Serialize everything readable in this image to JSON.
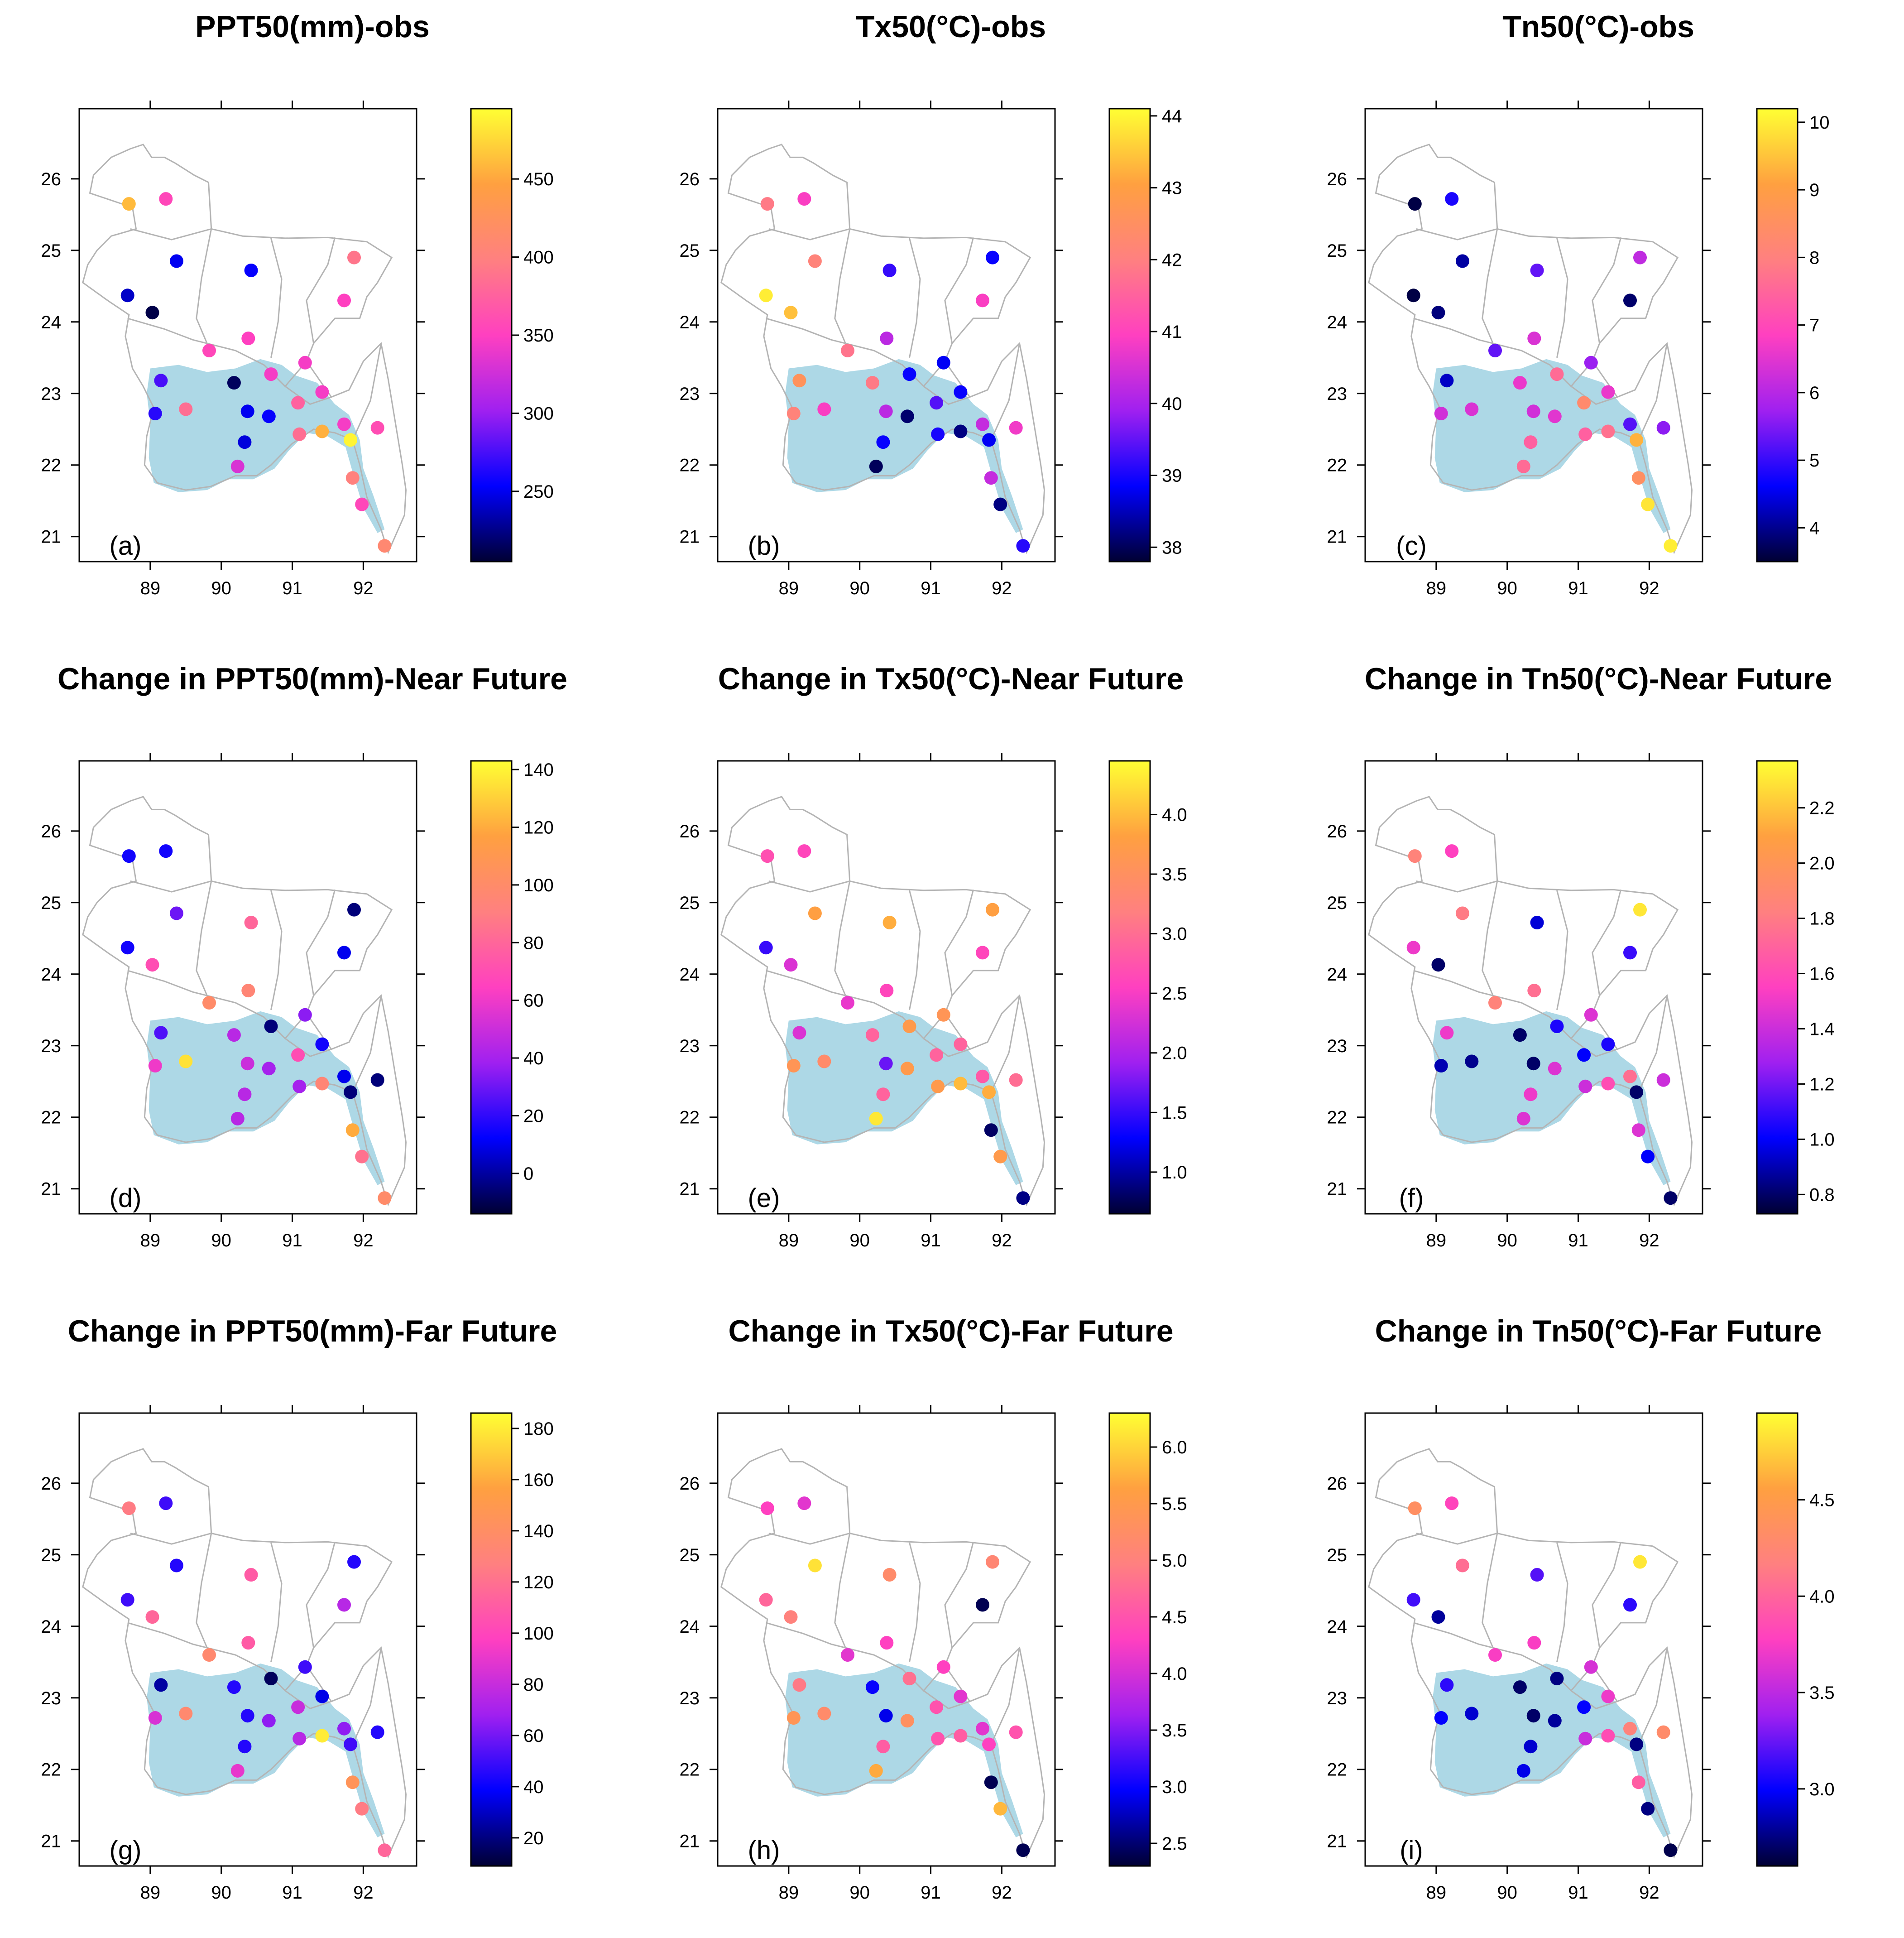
{
  "figure": {
    "panels": [
      {
        "id": "a",
        "letter": "(a)",
        "title": "PPT50(mm)-obs",
        "colorbar": {
          "ticks": [
            "250",
            "300",
            "350",
            "400",
            "450"
          ],
          "tick_values": [
            250,
            300,
            350,
            400,
            450
          ],
          "min": 205,
          "max": 495
        }
      },
      {
        "id": "b",
        "letter": "(b)",
        "title": "Tx50(°C)-obs",
        "colorbar": {
          "ticks": [
            "38",
            "39",
            "40",
            "41",
            "42",
            "43",
            "44"
          ],
          "tick_values": [
            38,
            39,
            40,
            41,
            42,
            43,
            44
          ],
          "min": 37.8,
          "max": 44.1
        }
      },
      {
        "id": "c",
        "letter": "(c)",
        "title": "Tn50(°C)-obs",
        "colorbar": {
          "ticks": [
            "4",
            "5",
            "6",
            "7",
            "8",
            "9",
            "10"
          ],
          "tick_values": [
            4,
            5,
            6,
            7,
            8,
            9,
            10
          ],
          "min": 3.5,
          "max": 10.2
        }
      },
      {
        "id": "d",
        "letter": "(d)",
        "title": "Change in PPT50(mm)-Near Future",
        "colorbar": {
          "ticks": [
            "0",
            "20",
            "40",
            "60",
            "80",
            "100",
            "120",
            "140"
          ],
          "tick_values": [
            0,
            20,
            40,
            60,
            80,
            100,
            120,
            140
          ],
          "min": -14,
          "max": 143
        }
      },
      {
        "id": "e",
        "letter": "(e)",
        "title": "Change in Tx50(°C)-Near Future",
        "colorbar": {
          "ticks": [
            "1.0",
            "1.5",
            "2.0",
            "2.5",
            "3.0",
            "3.5",
            "4.0"
          ],
          "tick_values": [
            1.0,
            1.5,
            2.0,
            2.5,
            3.0,
            3.5,
            4.0
          ],
          "min": 0.65,
          "max": 4.45
        }
      },
      {
        "id": "f",
        "letter": "(f)",
        "title": "Change in Tn50(°C)-Near Future",
        "colorbar": {
          "ticks": [
            "0.8",
            "1.0",
            "1.2",
            "1.4",
            "1.6",
            "1.8",
            "2.0",
            "2.2"
          ],
          "tick_values": [
            0.8,
            1.0,
            1.2,
            1.4,
            1.6,
            1.8,
            2.0,
            2.2
          ],
          "min": 0.73,
          "max": 2.37
        }
      },
      {
        "id": "g",
        "letter": "(g)",
        "title": "Change in PPT50(mm)-Far Future",
        "colorbar": {
          "ticks": [
            "20",
            "40",
            "60",
            "80",
            "100",
            "120",
            "140",
            "160",
            "180"
          ],
          "tick_values": [
            20,
            40,
            60,
            80,
            100,
            120,
            140,
            160,
            180
          ],
          "min": 9,
          "max": 186
        }
      },
      {
        "id": "h",
        "letter": "(h)",
        "title": "Change in Tx50(°C)-Far Future",
        "colorbar": {
          "ticks": [
            "2.5",
            "3.0",
            "3.5",
            "4.0",
            "4.5",
            "5.0",
            "5.5",
            "6.0"
          ],
          "tick_values": [
            2.5,
            3.0,
            3.5,
            4.0,
            4.5,
            5.0,
            5.5,
            6.0
          ],
          "min": 2.3,
          "max": 6.3
        }
      },
      {
        "id": "i",
        "letter": "(i)",
        "title": "Change in Tn50(°C)-Far Future",
        "colorbar": {
          "ticks": [
            "3.0",
            "3.5",
            "4.0",
            "4.5"
          ],
          "tick_values": [
            3.0,
            3.5,
            4.0,
            4.5
          ],
          "min": 2.6,
          "max": 4.95
        }
      }
    ],
    "x_ticks": [
      "89",
      "90",
      "91",
      "92"
    ],
    "x_tick_values": [
      89,
      90,
      91,
      92
    ],
    "y_ticks": [
      "21",
      "22",
      "23",
      "24",
      "25",
      "26"
    ],
    "y_tick_values": [
      21,
      22,
      23,
      24,
      25,
      26
    ],
    "xlim": [
      88.0,
      92.75
    ],
    "ylim": [
      20.65,
      26.98
    ],
    "colors": {
      "coastal_zone": "#add8e6",
      "boundary": "#b4b4b4",
      "axis": "#000000",
      "colormap": [
        "#000033",
        "#0000ff",
        "#a020f0",
        "#ff40c0",
        "#ff8080",
        "#ffa040",
        "#ffff33"
      ]
    }
  },
  "chart_data": {
    "type": "scatter",
    "description": "Station values on map of Bangladesh",
    "stations": [
      {
        "lon": 88.7,
        "lat": 25.65
      },
      {
        "lon": 89.22,
        "lat": 25.72
      },
      {
        "lon": 88.68,
        "lat": 24.37
      },
      {
        "lon": 89.03,
        "lat": 24.13
      },
      {
        "lon": 89.37,
        "lat": 24.85
      },
      {
        "lon": 90.42,
        "lat": 24.72
      },
      {
        "lon": 91.87,
        "lat": 24.9
      },
      {
        "lon": 91.73,
        "lat": 24.3
      },
      {
        "lon": 89.83,
        "lat": 23.6
      },
      {
        "lon": 90.38,
        "lat": 23.77
      },
      {
        "lon": 91.18,
        "lat": 23.43
      },
      {
        "lon": 90.7,
        "lat": 23.27
      },
      {
        "lon": 91.42,
        "lat": 23.02
      },
      {
        "lon": 90.18,
        "lat": 23.15
      },
      {
        "lon": 89.15,
        "lat": 23.18
      },
      {
        "lon": 89.07,
        "lat": 22.72
      },
      {
        "lon": 89.5,
        "lat": 22.78
      },
      {
        "lon": 90.37,
        "lat": 22.75
      },
      {
        "lon": 90.67,
        "lat": 22.68
      },
      {
        "lon": 91.08,
        "lat": 22.87
      },
      {
        "lon": 91.1,
        "lat": 22.43
      },
      {
        "lon": 91.42,
        "lat": 22.47
      },
      {
        "lon": 91.73,
        "lat": 22.57
      },
      {
        "lon": 91.82,
        "lat": 22.35
      },
      {
        "lon": 92.2,
        "lat": 22.52
      },
      {
        "lon": 90.33,
        "lat": 22.32
      },
      {
        "lon": 90.23,
        "lat": 21.98
      },
      {
        "lon": 91.85,
        "lat": 21.82
      },
      {
        "lon": 91.98,
        "lat": 21.45
      },
      {
        "lon": 92.3,
        "lat": 20.87
      }
    ],
    "series": [
      {
        "panel": "a",
        "name": "PPT50(mm)-obs",
        "values": [
          460,
          355,
          240,
          210,
          250,
          255,
          390,
          350,
          355,
          350,
          345,
          345,
          345,
          215,
          275,
          265,
          385,
          250,
          255,
          375,
          385,
          455,
          345,
          490,
          360,
          245,
          330,
          400,
          355,
          410
        ]
      },
      {
        "panel": "b",
        "name": "Tx50(°C)-obs",
        "values": [
          41.9,
          40.9,
          43.9,
          43.4,
          42.1,
          39.2,
          38.9,
          40.9,
          41.8,
          40.2,
          38.8,
          38.9,
          38.9,
          41.9,
          42.6,
          42.1,
          40.9,
          40.2,
          38.1,
          39.4,
          39.0,
          38.2,
          40.3,
          38.8,
          40.8,
          38.9,
          38.0,
          40.3,
          38.2,
          39.1
        ]
      },
      {
        "panel": "c",
        "name": "Tn50(°C)-obs",
        "values": [
          3.6,
          4.8,
          3.6,
          3.9,
          4.1,
          5.3,
          6.1,
          3.8,
          5.3,
          6.4,
          5.7,
          7.6,
          6.6,
          6.6,
          4.3,
          6.3,
          6.4,
          6.3,
          6.5,
          8.3,
          7.4,
          7.7,
          5.2,
          9.3,
          5.6,
          7.4,
          7.6,
          8.5,
          9.9,
          10.0
        ]
      },
      {
        "panel": "d",
        "name": "Change in PPT50(mm)-Near Future",
        "values": [
          15,
          15,
          15,
          70,
          30,
          80,
          -5,
          10,
          100,
          95,
          35,
          -5,
          15,
          45,
          25,
          60,
          135,
          50,
          40,
          70,
          40,
          95,
          10,
          -5,
          -5,
          45,
          45,
          120,
          85,
          100
        ]
      },
      {
        "panel": "e",
        "name": "Change in Tx50(°C)-Near Future",
        "values": [
          2.7,
          2.6,
          1.5,
          2.3,
          3.8,
          3.9,
          3.8,
          2.6,
          2.4,
          2.6,
          3.6,
          3.7,
          2.9,
          2.9,
          2.3,
          3.6,
          3.4,
          1.7,
          3.7,
          2.9,
          3.7,
          4.0,
          2.8,
          3.9,
          3.0,
          2.9,
          4.3,
          0.8,
          3.7,
          0.9
        ]
      },
      {
        "panel": "f",
        "name": "Change in Tn50(°C)-Near Future",
        "values": [
          1.85,
          1.55,
          1.5,
          0.8,
          1.8,
          0.95,
          2.3,
          1.1,
          1.85,
          1.75,
          1.45,
          1.05,
          1.05,
          0.8,
          1.5,
          0.9,
          0.85,
          0.8,
          1.45,
          1.0,
          1.4,
          1.6,
          1.75,
          0.8,
          1.4,
          1.5,
          1.45,
          1.45,
          1.0,
          0.8
        ]
      },
      {
        "panel": "g",
        "name": "Change in PPT50(mm)-Far Future",
        "values": [
          125,
          50,
          50,
          115,
          45,
          110,
          45,
          75,
          135,
          110,
          50,
          15,
          35,
          45,
          25,
          85,
          135,
          45,
          65,
          80,
          75,
          180,
          65,
          50,
          45,
          45,
          90,
          145,
          125,
          115
        ]
      },
      {
        "panel": "h",
        "name": "Change in Tx50(°C)-Far Future",
        "values": [
          4.3,
          4.1,
          4.7,
          5.0,
          6.1,
          5.2,
          5.1,
          2.4,
          4.1,
          4.3,
          4.3,
          4.8,
          4.1,
          3.0,
          4.9,
          5.4,
          5.2,
          2.9,
          5.3,
          4.5,
          4.5,
          4.6,
          4.1,
          4.3,
          4.5,
          4.6,
          5.7,
          2.4,
          5.8,
          2.4
        ]
      },
      {
        "panel": "i",
        "name": "Change in Tn50(°C)-Far Future",
        "values": [
          4.35,
          3.8,
          3.15,
          2.8,
          4.05,
          3.2,
          4.85,
          3.1,
          3.75,
          3.75,
          3.6,
          2.75,
          3.7,
          2.7,
          3.1,
          3.0,
          2.9,
          2.7,
          2.8,
          3.0,
          3.55,
          3.85,
          4.2,
          2.75,
          4.3,
          2.9,
          2.95,
          3.95,
          2.75,
          2.65
        ]
      }
    ]
  }
}
